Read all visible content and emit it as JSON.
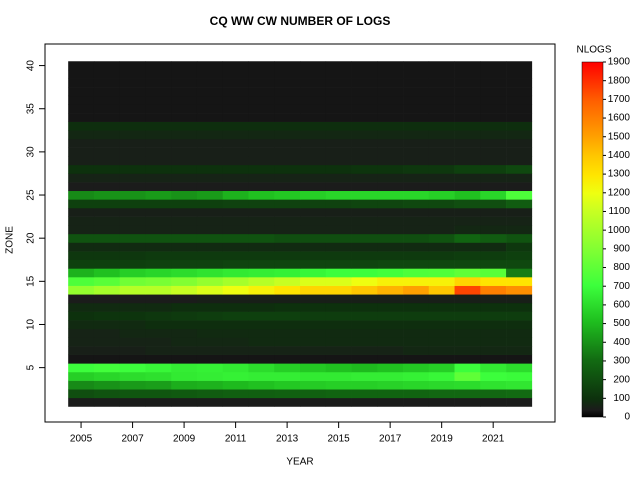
{
  "chart_data": {
    "type": "heatmap",
    "title": "CQ WW CW NUMBER OF LOGS",
    "x_label": "YEAR",
    "y_label": "ZONE",
    "colorbar_label": "NLOGS",
    "x": [
      2005,
      2006,
      2007,
      2008,
      2009,
      2010,
      2011,
      2012,
      2013,
      2014,
      2015,
      2016,
      2017,
      2018,
      2019,
      2020,
      2021,
      2022
    ],
    "y": [
      1,
      2,
      3,
      4,
      5,
      6,
      7,
      8,
      9,
      10,
      11,
      12,
      13,
      14,
      15,
      16,
      17,
      18,
      19,
      20,
      21,
      22,
      23,
      24,
      25,
      26,
      27,
      28,
      29,
      30,
      31,
      32,
      33,
      34,
      35,
      36,
      37,
      38,
      39,
      40
    ],
    "z": [
      [
        40,
        40,
        40,
        40,
        40,
        40,
        40,
        40,
        40,
        40,
        40,
        40,
        40,
        40,
        40,
        40,
        40,
        40
      ],
      [
        200,
        220,
        230,
        230,
        240,
        250,
        260,
        260,
        270,
        270,
        280,
        280,
        280,
        280,
        290,
        290,
        290,
        300
      ],
      [
        380,
        400,
        420,
        430,
        470,
        480,
        500,
        520,
        540,
        550,
        560,
        560,
        570,
        580,
        590,
        600,
        620,
        630
      ],
      [
        560,
        580,
        600,
        610,
        640,
        650,
        660,
        650,
        650,
        640,
        640,
        650,
        650,
        660,
        680,
        800,
        700,
        690
      ],
      [
        700,
        720,
        700,
        680,
        650,
        660,
        640,
        600,
        560,
        540,
        520,
        500,
        520,
        540,
        560,
        700,
        640,
        600
      ],
      [
        30,
        30,
        30,
        30,
        30,
        30,
        30,
        30,
        30,
        30,
        30,
        30,
        30,
        30,
        30,
        30,
        30,
        30
      ],
      [
        50,
        50,
        50,
        60,
        60,
        60,
        60,
        60,
        60,
        60,
        60,
        60,
        60,
        70,
        70,
        70,
        70,
        70
      ],
      [
        60,
        60,
        60,
        60,
        70,
        70,
        70,
        80,
        80,
        80,
        80,
        80,
        80,
        80,
        80,
        80,
        80,
        80
      ],
      [
        60,
        60,
        70,
        70,
        70,
        80,
        80,
        80,
        80,
        80,
        80,
        80,
        80,
        80,
        80,
        80,
        80,
        80
      ],
      [
        80,
        80,
        80,
        90,
        90,
        90,
        90,
        90,
        90,
        90,
        90,
        90,
        90,
        90,
        90,
        90,
        90,
        90
      ],
      [
        100,
        110,
        110,
        120,
        130,
        140,
        150,
        150,
        150,
        140,
        140,
        140,
        140,
        140,
        140,
        140,
        140,
        140
      ],
      [
        80,
        80,
        80,
        80,
        90,
        90,
        90,
        90,
        100,
        100,
        100,
        100,
        100,
        100,
        100,
        100,
        100,
        100
      ],
      [
        40,
        40,
        40,
        40,
        40,
        50,
        50,
        50,
        50,
        50,
        50,
        50,
        50,
        50,
        50,
        50,
        50,
        50
      ],
      [
        950,
        1000,
        1050,
        1050,
        1100,
        1150,
        1200,
        1250,
        1300,
        1350,
        1350,
        1400,
        1450,
        1500,
        1400,
        1750,
        1600,
        1550
      ],
      [
        750,
        780,
        850,
        870,
        900,
        950,
        1000,
        1050,
        1100,
        1150,
        1150,
        1200,
        1250,
        1250,
        1250,
        1350,
        1300,
        1300
      ],
      [
        480,
        520,
        560,
        580,
        600,
        620,
        640,
        650,
        660,
        680,
        700,
        700,
        720,
        750,
        760,
        800,
        780,
        350
      ],
      [
        150,
        150,
        150,
        160,
        160,
        160,
        170,
        170,
        170,
        170,
        170,
        170,
        180,
        180,
        180,
        180,
        180,
        180
      ],
      [
        120,
        120,
        120,
        130,
        130,
        130,
        130,
        130,
        130,
        130,
        130,
        130,
        130,
        130,
        130,
        140,
        140,
        150
      ],
      [
        80,
        80,
        80,
        80,
        80,
        80,
        80,
        80,
        80,
        80,
        80,
        80,
        80,
        80,
        80,
        80,
        80,
        120
      ],
      [
        220,
        220,
        220,
        220,
        220,
        220,
        220,
        220,
        200,
        200,
        200,
        200,
        200,
        200,
        220,
        280,
        250,
        220
      ],
      [
        60,
        60,
        60,
        60,
        60,
        60,
        60,
        60,
        60,
        60,
        60,
        60,
        60,
        60,
        60,
        70,
        70,
        70
      ],
      [
        60,
        60,
        60,
        60,
        60,
        60,
        60,
        60,
        60,
        60,
        60,
        60,
        60,
        60,
        60,
        60,
        60,
        60
      ],
      [
        50,
        50,
        50,
        50,
        50,
        50,
        50,
        50,
        50,
        50,
        50,
        50,
        50,
        50,
        50,
        50,
        50,
        50
      ],
      [
        150,
        150,
        150,
        150,
        150,
        150,
        160,
        160,
        160,
        160,
        160,
        170,
        170,
        180,
        180,
        200,
        200,
        250
      ],
      [
        380,
        400,
        400,
        420,
        400,
        420,
        480,
        520,
        540,
        560,
        580,
        580,
        580,
        580,
        560,
        520,
        580,
        750
      ],
      [
        40,
        40,
        40,
        40,
        40,
        40,
        40,
        40,
        40,
        40,
        40,
        40,
        40,
        40,
        40,
        40,
        40,
        40
      ],
      [
        60,
        60,
        60,
        60,
        60,
        60,
        60,
        60,
        60,
        60,
        60,
        60,
        60,
        60,
        60,
        60,
        60,
        60
      ],
      [
        100,
        100,
        100,
        100,
        100,
        100,
        100,
        100,
        100,
        100,
        100,
        110,
        110,
        120,
        120,
        150,
        150,
        180
      ],
      [
        50,
        50,
        50,
        50,
        50,
        50,
        50,
        50,
        50,
        50,
        50,
        50,
        50,
        50,
        50,
        50,
        50,
        50
      ],
      [
        50,
        50,
        50,
        50,
        50,
        50,
        50,
        50,
        50,
        50,
        50,
        50,
        50,
        50,
        50,
        50,
        50,
        50
      ],
      [
        50,
        50,
        50,
        50,
        50,
        50,
        50,
        50,
        50,
        50,
        50,
        50,
        50,
        50,
        50,
        50,
        50,
        50
      ],
      [
        70,
        70,
        70,
        70,
        70,
        70,
        70,
        70,
        70,
        70,
        70,
        70,
        70,
        70,
        70,
        70,
        70,
        70
      ],
      [
        90,
        90,
        90,
        90,
        90,
        90,
        90,
        90,
        90,
        90,
        90,
        90,
        90,
        90,
        90,
        90,
        90,
        90
      ],
      [
        30,
        30,
        30,
        30,
        30,
        30,
        30,
        30,
        30,
        30,
        30,
        30,
        30,
        30,
        30,
        30,
        30,
        30
      ],
      [
        30,
        30,
        30,
        30,
        30,
        30,
        30,
        30,
        30,
        30,
        30,
        30,
        30,
        30,
        30,
        30,
        30,
        30
      ],
      [
        30,
        30,
        30,
        30,
        30,
        30,
        30,
        30,
        30,
        30,
        30,
        30,
        30,
        30,
        30,
        30,
        30,
        30
      ],
      [
        30,
        30,
        30,
        30,
        30,
        30,
        30,
        30,
        30,
        30,
        30,
        30,
        30,
        30,
        30,
        30,
        30,
        30
      ],
      [
        30,
        30,
        30,
        30,
        30,
        30,
        30,
        30,
        30,
        30,
        30,
        30,
        30,
        30,
        30,
        30,
        30,
        30
      ],
      [
        30,
        30,
        30,
        30,
        30,
        30,
        30,
        30,
        30,
        30,
        30,
        30,
        30,
        30,
        30,
        30,
        30,
        30
      ],
      [
        30,
        30,
        30,
        30,
        30,
        30,
        30,
        30,
        30,
        30,
        30,
        30,
        30,
        30,
        30,
        30,
        30,
        30
      ]
    ],
    "xlim": [
      2003.6,
      2023.4
    ],
    "ylim": [
      -1.3,
      42.5
    ],
    "xticks": [
      2005,
      2007,
      2009,
      2011,
      2013,
      2015,
      2017,
      2019,
      2021
    ],
    "yticks": [
      5,
      10,
      15,
      20,
      25,
      30,
      35,
      40
    ],
    "zlim": [
      0,
      1900
    ],
    "zticks": [
      0,
      100,
      200,
      300,
      400,
      500,
      600,
      700,
      800,
      900,
      1000,
      1100,
      1200,
      1300,
      1400,
      1500,
      1600,
      1700,
      1800,
      1900
    ],
    "colorscale": [
      [
        0,
        "#000000"
      ],
      [
        0.02,
        "#1b1b1b"
      ],
      [
        0.05,
        "#0d300d"
      ],
      [
        0.16,
        "#126b12"
      ],
      [
        0.27,
        "#1fbf1f"
      ],
      [
        0.37,
        "#3cff3c"
      ],
      [
        0.47,
        "#80ff33"
      ],
      [
        0.58,
        "#c8ff22"
      ],
      [
        0.63,
        "#eeff11"
      ],
      [
        0.68,
        "#ffe600"
      ],
      [
        0.74,
        "#ffc400"
      ],
      [
        0.79,
        "#ffa000"
      ],
      [
        0.89,
        "#ff6000"
      ],
      [
        1,
        "#ff0000"
      ]
    ]
  }
}
